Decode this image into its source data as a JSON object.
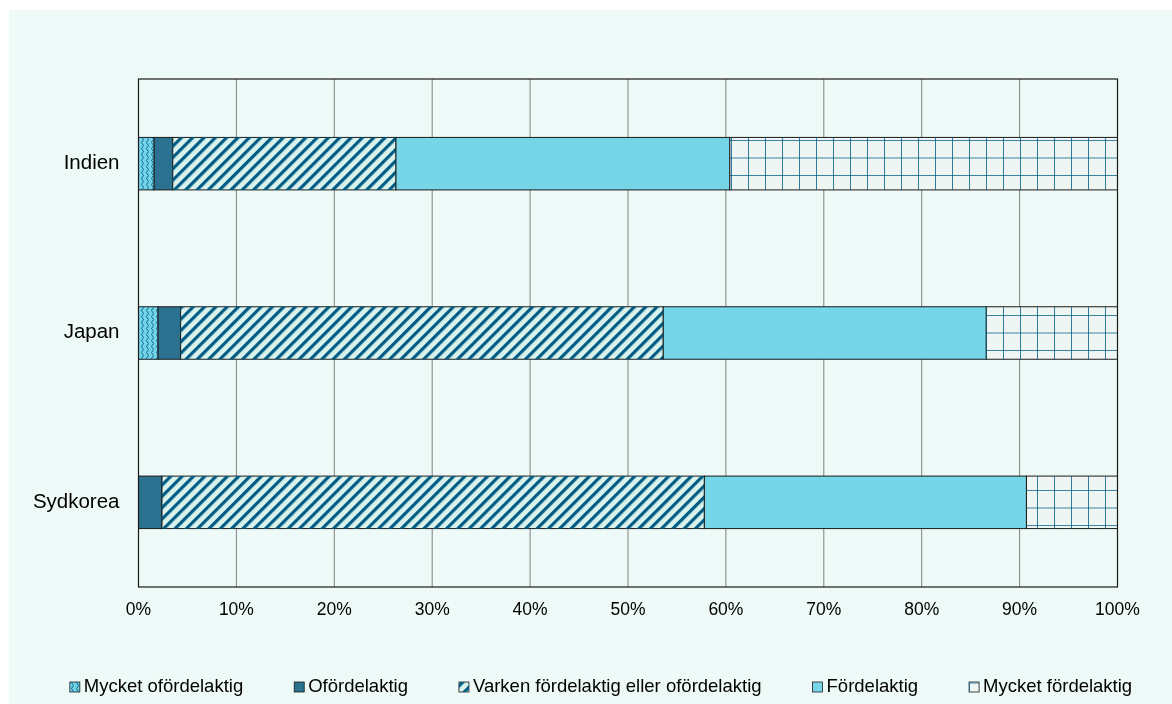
{
  "chart_data": {
    "type": "bar",
    "orientation": "horizontal",
    "stacked": true,
    "categories": [
      "Indien",
      "Japan",
      "Sydkorea"
    ],
    "series": [
      {
        "name": "Mycket ofördelaktig",
        "color": "#74d3e6",
        "values": [
          1.6,
          2.0,
          0
        ]
      },
      {
        "name": "Ofördelaktig",
        "color": "#2a7290",
        "values": [
          1.9,
          2.3,
          2.4
        ]
      },
      {
        "name": "Varken fördelaktig eller ofördelaktig",
        "color": "#d9f2ec",
        "values": [
          22.8,
          49.3,
          55.4
        ]
      },
      {
        "name": "Fördelaktig",
        "color": "#76d5e6",
        "values": [
          34.1,
          33.0,
          32.9
        ]
      },
      {
        "name": "Mycket fördelaktig",
        "color": "#eef5f3",
        "values": [
          39.6,
          13.4,
          9.3
        ]
      }
    ],
    "xlim": [
      0,
      100
    ],
    "xticks": [
      {
        "value": 0,
        "label": "0%"
      },
      {
        "value": 10,
        "label": "10%"
      },
      {
        "value": 20,
        "label": "20%"
      },
      {
        "value": 30,
        "label": "30%"
      },
      {
        "value": 40,
        "label": "40%"
      },
      {
        "value": 50,
        "label": "50%"
      },
      {
        "value": 60,
        "label": "60%"
      },
      {
        "value": 70,
        "label": "70%"
      },
      {
        "value": 80,
        "label": "80%"
      },
      {
        "value": 90,
        "label": "90%"
      },
      {
        "value": 100,
        "label": "100%"
      }
    ],
    "grid": "x",
    "legend": "bottom"
  }
}
